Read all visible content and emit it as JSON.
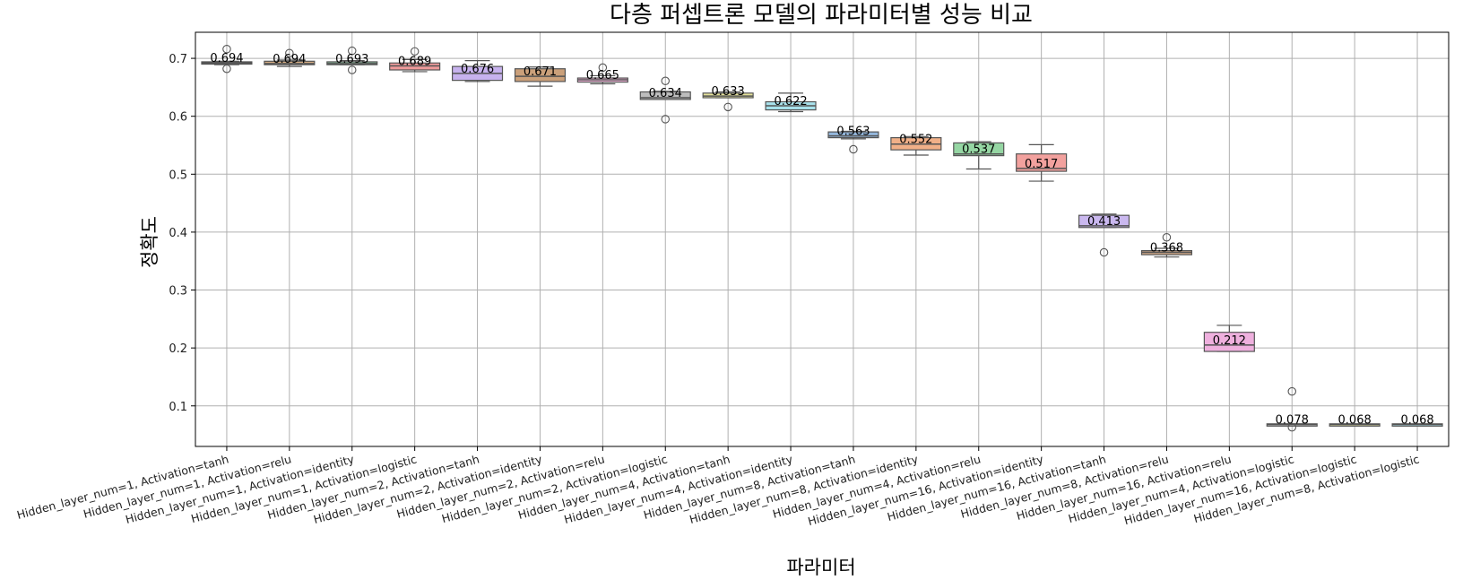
{
  "chart_data": {
    "type": "box",
    "title": "다층 퍼셉트론 모델의 파라미터별 성능 비교",
    "xlabel": "파라미터",
    "ylabel": "정확도",
    "ylim": [
      0.03,
      0.745
    ],
    "yticks": [
      0.1,
      0.2,
      0.3,
      0.4,
      0.5,
      0.6,
      0.7
    ],
    "grid": true,
    "categories": [
      "Hidden_layer_num=1, Activation=tanh",
      "Hidden_layer_num=1, Activation=relu",
      "Hidden_layer_num=1, Activation=identity",
      "Hidden_layer_num=1, Activation=logistic",
      "Hidden_layer_num=2, Activation=tanh",
      "Hidden_layer_num=2, Activation=identity",
      "Hidden_layer_num=2, Activation=relu",
      "Hidden_layer_num=2, Activation=logistic",
      "Hidden_layer_num=4, Activation=tanh",
      "Hidden_layer_num=4, Activation=identity",
      "Hidden_layer_num=8, Activation=tanh",
      "Hidden_layer_num=8, Activation=identity",
      "Hidden_layer_num=4, Activation=relu",
      "Hidden_layer_num=16, Activation=identity",
      "Hidden_layer_num=16, Activation=tanh",
      "Hidden_layer_num=8, Activation=relu",
      "Hidden_layer_num=16, Activation=relu",
      "Hidden_layer_num=4, Activation=logistic",
      "Hidden_layer_num=16, Activation=logistic",
      "Hidden_layer_num=8, Activation=logistic"
    ],
    "median_labels": [
      "0.694",
      "0.694",
      "0.693",
      "0.689",
      "0.676",
      "0.671",
      "0.665",
      "0.634",
      "0.633",
      "0.622",
      "0.563",
      "0.552",
      "0.537",
      "0.517",
      "0.413",
      "0.368",
      "0.212",
      "0.078",
      "0.068",
      "0.068"
    ],
    "boxes": [
      {
        "min": 0.689,
        "q1": 0.69,
        "median": 0.692,
        "q3": 0.694,
        "max": 0.695,
        "outliers": [
          0.716,
          0.682
        ]
      },
      {
        "min": 0.686,
        "q1": 0.689,
        "median": 0.691,
        "q3": 0.695,
        "max": 0.697,
        "outliers": [
          0.709
        ]
      },
      {
        "min": 0.689,
        "q1": 0.689,
        "median": 0.691,
        "q3": 0.694,
        "max": 0.696,
        "outliers": [
          0.713,
          0.68
        ]
      },
      {
        "min": 0.677,
        "q1": 0.68,
        "median": 0.687,
        "q3": 0.692,
        "max": 0.698,
        "outliers": [
          0.712
        ]
      },
      {
        "min": 0.66,
        "q1": 0.662,
        "median": 0.674,
        "q3": 0.686,
        "max": 0.696,
        "outliers": []
      },
      {
        "min": 0.652,
        "q1": 0.66,
        "median": 0.669,
        "q3": 0.682,
        "max": 0.685,
        "outliers": []
      },
      {
        "min": 0.656,
        "q1": 0.659,
        "median": 0.663,
        "q3": 0.666,
        "max": 0.67,
        "outliers": [
          0.684
        ]
      },
      {
        "min": 0.629,
        "q1": 0.629,
        "median": 0.632,
        "q3": 0.642,
        "max": 0.643,
        "outliers": [
          0.661,
          0.595
        ]
      },
      {
        "min": 0.632,
        "q1": 0.632,
        "median": 0.635,
        "q3": 0.64,
        "max": 0.642,
        "outliers": [
          0.616
        ]
      },
      {
        "min": 0.608,
        "q1": 0.611,
        "median": 0.618,
        "q3": 0.625,
        "max": 0.64,
        "outliers": []
      },
      {
        "min": 0.561,
        "q1": 0.563,
        "median": 0.566,
        "q3": 0.573,
        "max": 0.574,
        "outliers": [
          0.543
        ]
      },
      {
        "min": 0.533,
        "q1": 0.542,
        "median": 0.552,
        "q3": 0.563,
        "max": 0.565,
        "outliers": []
      },
      {
        "min": 0.509,
        "q1": 0.532,
        "median": 0.535,
        "q3": 0.554,
        "max": 0.556,
        "outliers": []
      },
      {
        "min": 0.488,
        "q1": 0.505,
        "median": 0.51,
        "q3": 0.535,
        "max": 0.551,
        "outliers": []
      },
      {
        "min": 0.408,
        "q1": 0.408,
        "median": 0.411,
        "q3": 0.429,
        "max": 0.431,
        "outliers": [
          0.365
        ]
      },
      {
        "min": 0.357,
        "q1": 0.361,
        "median": 0.365,
        "q3": 0.368,
        "max": 0.372,
        "outliers": [
          0.391
        ]
      },
      {
        "min": 0.194,
        "q1": 0.194,
        "median": 0.205,
        "q3": 0.227,
        "max": 0.239,
        "outliers": []
      },
      {
        "min": 0.068,
        "q1": 0.068,
        "median": 0.068,
        "q3": 0.069,
        "max": 0.069,
        "outliers": [
          0.125,
          0.063
        ]
      },
      {
        "min": 0.068,
        "q1": 0.068,
        "median": 0.068,
        "q3": 0.069,
        "max": 0.069,
        "outliers": []
      },
      {
        "min": 0.068,
        "q1": 0.068,
        "median": 0.068,
        "q3": 0.069,
        "max": 0.069,
        "outliers": []
      }
    ],
    "colors": [
      "#8c8c8c",
      "#d6ae84",
      "#8dc7a4",
      "#ef9a9a",
      "#c7b2ee",
      "#cba07a",
      "#eeb3d7",
      "#bdbdbd",
      "#e4e19a",
      "#a8e2ec",
      "#94b7dc",
      "#f1b088",
      "#95d6a3",
      "#f2a19e",
      "#cab8ef",
      "#d2a886",
      "#efb0de",
      "#c4c4c4",
      "#e2e0a6",
      "#aee0ea"
    ],
    "median_color": "#555555",
    "edge_color": "#555555"
  }
}
